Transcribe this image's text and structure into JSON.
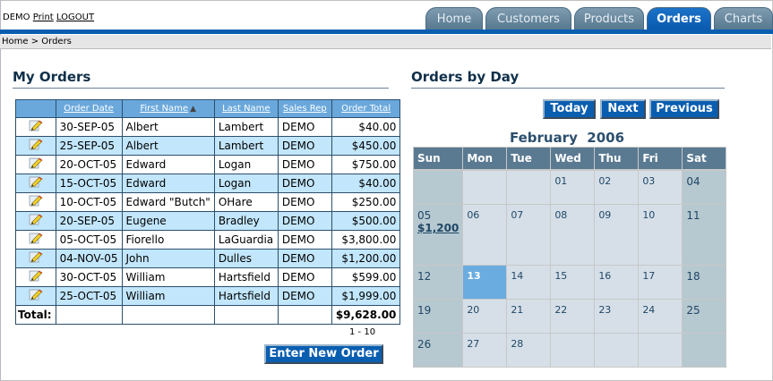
{
  "userbar": {
    "user": "DEMO",
    "print": "Print",
    "logout": "LOGOUT"
  },
  "tabs": [
    {
      "label": "Home",
      "active": false
    },
    {
      "label": "Customers",
      "active": false
    },
    {
      "label": "Products",
      "active": false
    },
    {
      "label": "Orders",
      "active": true
    },
    {
      "label": "Charts",
      "active": false
    }
  ],
  "breadcrumb": "Home > Orders",
  "my_orders": {
    "title": "My Orders",
    "columns": [
      "",
      "Order Date",
      "First Name",
      "Last Name",
      "Sales Rep",
      "Order Total"
    ],
    "sort_indicator": "▲",
    "rows": [
      [
        "30-SEP-05",
        "Albert",
        "Lambert",
        "DEMO",
        "$40.00"
      ],
      [
        "25-SEP-05",
        "Albert",
        "Lambert",
        "DEMO",
        "$450.00"
      ],
      [
        "20-OCT-05",
        "Edward",
        "Logan",
        "DEMO",
        "$750.00"
      ],
      [
        "15-OCT-05",
        "Edward",
        "Logan",
        "DEMO",
        "$40.00"
      ],
      [
        "10-OCT-05",
        "Edward \"Butch\"",
        "OHare",
        "DEMO",
        "$250.00"
      ],
      [
        "20-SEP-05",
        "Eugene",
        "Bradley",
        "DEMO",
        "$500.00"
      ],
      [
        "05-OCT-05",
        "Fiorello",
        "LaGuardia",
        "DEMO",
        "$3,800.00"
      ],
      [
        "04-NOV-05",
        "John",
        "Dulles",
        "DEMO",
        "$1,200.00"
      ],
      [
        "30-OCT-05",
        "William",
        "Hartsfield",
        "DEMO",
        "$599.00"
      ],
      [
        "25-OCT-05",
        "William",
        "Hartsfield",
        "DEMO",
        "$1,999.00"
      ]
    ],
    "total_label": "Total:",
    "total_value": "$9,628.00",
    "pager": "1 - 10",
    "new_order_button": "Enter New Order"
  },
  "orders_by_day": {
    "title": "Orders by Day",
    "buttons": {
      "today": "Today",
      "next": "Next",
      "previous": "Previous"
    },
    "month_title": "February  2006",
    "weekdays": [
      "Sun",
      "Mon",
      "Tue",
      "Wed",
      "Thu",
      "Fri",
      "Sat"
    ],
    "weeks": [
      [
        "",
        "",
        "",
        "01",
        "02",
        "03",
        "04"
      ],
      [
        "05",
        "06",
        "07",
        "08",
        "09",
        "10",
        "11"
      ],
      [
        "12",
        "13",
        "14",
        "15",
        "16",
        "17",
        "18"
      ],
      [
        "19",
        "20",
        "21",
        "22",
        "23",
        "24",
        "25"
      ],
      [
        "26",
        "27",
        "28",
        "",
        "",
        "",
        ""
      ]
    ],
    "today": "13",
    "events": {
      "05": "$1,200"
    }
  },
  "colors": {
    "accent_blue": "#0a5eb0",
    "header_row": "#6aa8dc",
    "alt_row": "#c2e6fb",
    "cal_header": "#5a7a92",
    "cal_weekday": "#d6dfe8",
    "cal_weekend": "#b6c8d0",
    "cal_today": "#6aace0"
  }
}
